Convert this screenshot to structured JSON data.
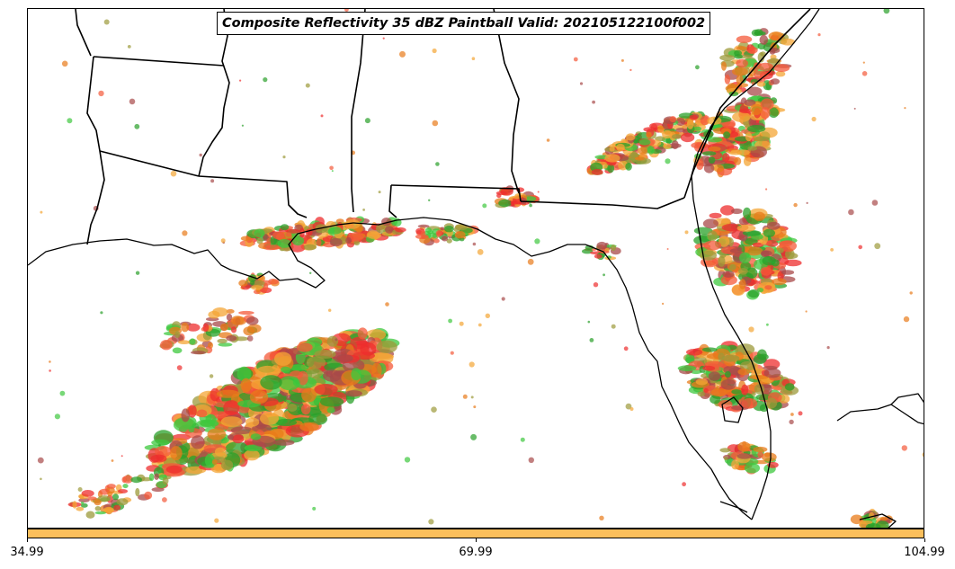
{
  "title": "Composite Reflectivity 35 dBZ Paintball Valid: 202105122100f002",
  "colorbar": {
    "color": "#fbbf5c",
    "ticks": [
      {
        "value": 34.99,
        "label": "34.99"
      },
      {
        "value": 69.99,
        "label": "69.99"
      },
      {
        "value": 104.99,
        "label": "104.99"
      }
    ],
    "range": [
      34.99,
      104.99
    ]
  },
  "member_colors": [
    "#f4a535",
    "#f45a3a",
    "#ee2d2d",
    "#a84a4a",
    "#9c9a3a",
    "#3ec83e",
    "#2aa02a",
    "#e87b1a"
  ]
}
